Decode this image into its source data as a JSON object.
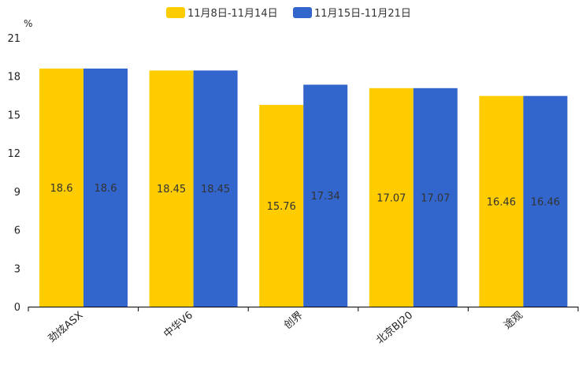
{
  "chart_data": {
    "type": "bar",
    "title": "",
    "ylabel_unit": "%",
    "xlabel": "",
    "ylim": [
      0,
      21
    ],
    "yticks": [
      0,
      3,
      6,
      9,
      12,
      15,
      18,
      21
    ],
    "ytick_labels": [
      "0",
      "3",
      "6",
      "9",
      "12",
      "15",
      "18",
      "21"
    ],
    "categories": [
      "劲炫ASX",
      "中华V6",
      "创界",
      "北京BJ20",
      "途观"
    ],
    "series": [
      {
        "name": "11月8日-11月14日",
        "color": "#ffcc00",
        "values": [
          18.6,
          18.45,
          15.76,
          17.07,
          16.46
        ],
        "labels": [
          "18.6",
          "18.45",
          "15.76",
          "17.07",
          "16.46"
        ]
      },
      {
        "name": "11月15日-11月21日",
        "color": "#3366cc",
        "values": [
          18.6,
          18.45,
          17.34,
          17.07,
          16.46
        ],
        "labels": [
          "18.6",
          "18.45",
          "17.34",
          "17.07",
          "16.46"
        ]
      }
    ],
    "legend_position": "top-center",
    "grid": false
  }
}
